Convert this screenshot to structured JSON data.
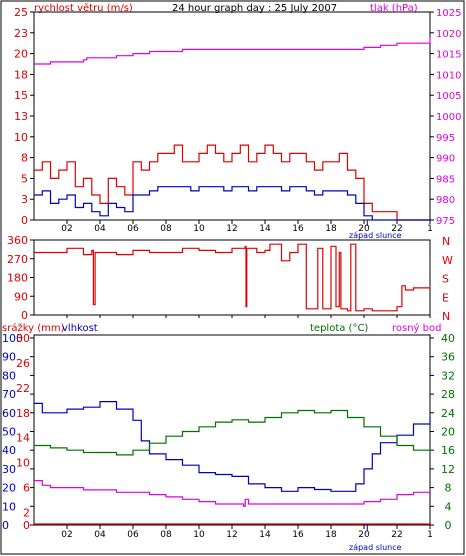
{
  "header": {
    "title": "24 hour graph day : 25 July 2007",
    "wind_label": "rychlost větru (m/s)",
    "pressure_label": "tlak (hPa)"
  },
  "middle": {
    "direction_labels": [
      "N",
      "W",
      "S",
      "E",
      "N"
    ]
  },
  "bottom": {
    "rain_label": "srážky (mm)",
    "humidity_label": "vlhkost",
    "temp_label": "teplota (°C)",
    "dew_label": "rosný bod"
  },
  "sunset_label": "západ slunce",
  "colors": {
    "wind_gust": "#e00000",
    "wind_avg": "#0000c0",
    "pressure": "#e000e0",
    "direction": "#e00000",
    "humidity": "#0000c0",
    "temperature": "#007000",
    "dew_point": "#e000e0",
    "rain": "#e00000",
    "sunset_marker": "#0000c0"
  },
  "chart_data": [
    {
      "type": "line",
      "name_ref": "top",
      "x_ticks": [
        "02",
        "04",
        "06",
        "08",
        "10",
        "12",
        "14",
        "16",
        "18",
        "20",
        "22",
        "1"
      ],
      "y_left_ticks": [
        0,
        2.5,
        5,
        7.5,
        10,
        12.5,
        15,
        17.5,
        20,
        22.5,
        25
      ],
      "y_left_tick_labels": [
        "0",
        "3",
        "5",
        "8",
        "10",
        "13",
        "15",
        "18",
        "20",
        "23",
        "25"
      ],
      "y_right_ticks": [
        975,
        980,
        985,
        990,
        995,
        1000,
        1005,
        1010,
        1015,
        1020,
        1025
      ],
      "ylim_left": [
        0,
        25
      ],
      "ylim_right": [
        975,
        1025
      ],
      "xlim": [
        0,
        24
      ],
      "sunset_hour": 20.2,
      "series": [
        {
          "axis": "right",
          "kind": "pressure",
          "x": [
            0,
            1,
            2,
            3,
            3.2,
            4,
            5,
            6,
            7,
            8,
            9,
            10,
            11,
            12,
            13,
            14,
            15,
            16,
            17,
            18,
            19,
            20,
            21,
            22,
            23,
            24
          ],
          "values": [
            1012.5,
            1013,
            1013,
            1013.5,
            1014,
            1014,
            1014.5,
            1015,
            1015.5,
            1015.5,
            1016,
            1016,
            1016,
            1016,
            1016,
            1016,
            1016,
            1016,
            1016,
            1016,
            1016,
            1016.5,
            1017,
            1017.5,
            1017.5,
            1019
          ]
        },
        {
          "axis": "left",
          "kind": "gust",
          "x": [
            0,
            0.5,
            1,
            1.5,
            2,
            2.5,
            3,
            3.5,
            4,
            4.5,
            5,
            5.5,
            6,
            6.5,
            7,
            7.5,
            8,
            8.5,
            9,
            9.5,
            10,
            10.5,
            11,
            11.5,
            12,
            12.5,
            13,
            13.5,
            14,
            14.5,
            15,
            15.5,
            16,
            16.5,
            17,
            17.5,
            18,
            18.5,
            19,
            19.5,
            20,
            20.5,
            21,
            22,
            23,
            24
          ],
          "values": [
            6,
            7,
            5,
            6,
            7,
            4,
            5,
            3,
            2,
            5,
            4,
            3,
            7,
            6,
            7,
            8,
            8,
            9,
            7,
            7,
            8,
            9,
            8,
            7,
            8,
            9,
            7,
            8,
            9,
            8,
            7,
            8,
            8,
            7,
            6,
            7,
            7,
            8,
            6,
            5,
            2,
            1,
            1,
            0,
            0,
            0
          ]
        },
        {
          "axis": "left",
          "kind": "avg",
          "x": [
            0,
            0.5,
            1,
            1.5,
            2,
            2.5,
            3,
            3.5,
            4,
            4.5,
            5,
            5.5,
            6,
            6.5,
            7,
            7.5,
            8,
            8.5,
            9,
            9.5,
            10,
            10.5,
            11,
            11.5,
            12,
            12.5,
            13,
            13.5,
            14,
            14.5,
            15,
            15.5,
            16,
            16.5,
            17,
            17.5,
            18,
            18.5,
            19,
            19.5,
            20,
            20.5,
            21,
            22,
            23,
            24
          ],
          "values": [
            3,
            3.5,
            2,
            2.5,
            3,
            1.5,
            2,
            1,
            0.5,
            2,
            1.5,
            1,
            3,
            3,
            3.5,
            4,
            4,
            4,
            4,
            3.5,
            4,
            4,
            4,
            3.5,
            4,
            4,
            3.5,
            4,
            4,
            4,
            3.5,
            4,
            4,
            3.5,
            3,
            3.5,
            3.5,
            3.5,
            3,
            2,
            0.5,
            0,
            0,
            0,
            0,
            0
          ]
        }
      ]
    },
    {
      "type": "line",
      "name_ref": "middle",
      "y_ticks": [
        0,
        90,
        180,
        270,
        360
      ],
      "ylim": [
        0,
        360
      ],
      "xlim": [
        0,
        24
      ],
      "series": [
        {
          "kind": "direction",
          "x": [
            0,
            1,
            2,
            3,
            3.5,
            3.6,
            3.7,
            4,
            5,
            6,
            7,
            8,
            9,
            10,
            11,
            12,
            12.8,
            12.85,
            12.9,
            13.5,
            14,
            14.3,
            15,
            15.5,
            16,
            16.5,
            17,
            17.2,
            17.3,
            17.5,
            18,
            18.3,
            18.5,
            18.6,
            19,
            19.2,
            19.3,
            19.5,
            20,
            20.5,
            21,
            21.5,
            22,
            22.3,
            22.5,
            23,
            24
          ],
          "values": [
            300,
            300,
            320,
            290,
            310,
            50,
            300,
            300,
            290,
            310,
            300,
            300,
            320,
            310,
            300,
            320,
            330,
            40,
            320,
            300,
            310,
            340,
            260,
            300,
            340,
            30,
            30,
            320,
            320,
            30,
            330,
            40,
            300,
            30,
            20,
            340,
            340,
            20,
            30,
            20,
            20,
            20,
            40,
            140,
            120,
            130,
            140
          ]
        }
      ]
    },
    {
      "type": "line",
      "name_ref": "bottom",
      "y_left_hum_ticks": [
        0,
        10,
        20,
        30,
        40,
        50,
        60,
        70,
        80,
        90,
        100
      ],
      "y_left_rain_ticks": [
        0,
        2,
        4,
        6,
        8,
        10,
        12,
        14,
        16,
        18,
        20,
        22,
        24,
        26,
        28,
        30
      ],
      "y_right_ticks": [
        0,
        4,
        8,
        12,
        16,
        20,
        24,
        28,
        32,
        36,
        40
      ],
      "ylim_hum": [
        0,
        100
      ],
      "ylim_temp": [
        0,
        40
      ],
      "xlim": [
        0,
        24
      ],
      "series": [
        {
          "kind": "humidity",
          "x": [
            0,
            0.5,
            1,
            2,
            3,
            4,
            5,
            6,
            6.5,
            7,
            8,
            9,
            10,
            11,
            12,
            13,
            14,
            15,
            16,
            17,
            18,
            19,
            19.5,
            20,
            20.5,
            21,
            22,
            23,
            24
          ],
          "values": [
            65,
            60,
            60,
            62,
            63,
            66,
            62,
            56,
            45,
            38,
            35,
            32,
            28,
            27,
            26,
            22,
            20,
            18,
            20,
            19,
            18,
            18,
            22,
            30,
            38,
            44,
            48,
            54,
            58
          ]
        },
        {
          "kind": "temperature",
          "x": [
            0,
            1,
            2,
            3,
            4,
            5,
            6,
            7,
            8,
            9,
            10,
            11,
            12,
            13,
            14,
            15,
            16,
            17,
            18,
            19,
            20,
            21,
            22,
            23,
            24
          ],
          "values": [
            17,
            16.5,
            16,
            15.5,
            15.5,
            15,
            16,
            17.5,
            19,
            20,
            21,
            22,
            22.5,
            22,
            23,
            24,
            24.5,
            24,
            24.5,
            23,
            21,
            19,
            17,
            16,
            15.5
          ]
        },
        {
          "kind": "dew_point",
          "x": [
            0,
            0.5,
            1,
            2,
            3,
            4,
            5,
            6,
            7,
            8,
            9,
            10,
            11,
            12,
            12.7,
            12.8,
            13,
            14,
            15,
            16,
            17,
            18,
            19,
            20,
            21,
            22,
            23,
            24
          ],
          "values": [
            9.5,
            8.5,
            8,
            8,
            7.5,
            7.5,
            7,
            7,
            6.5,
            6,
            5.5,
            5,
            4.5,
            4.5,
            4,
            5.5,
            4.5,
            4.5,
            4.5,
            4.5,
            4.5,
            4.5,
            4.5,
            5,
            5.5,
            6.5,
            7,
            7
          ]
        },
        {
          "kind": "rain",
          "x": [
            0,
            24
          ],
          "values": [
            0,
            0
          ]
        }
      ]
    }
  ]
}
